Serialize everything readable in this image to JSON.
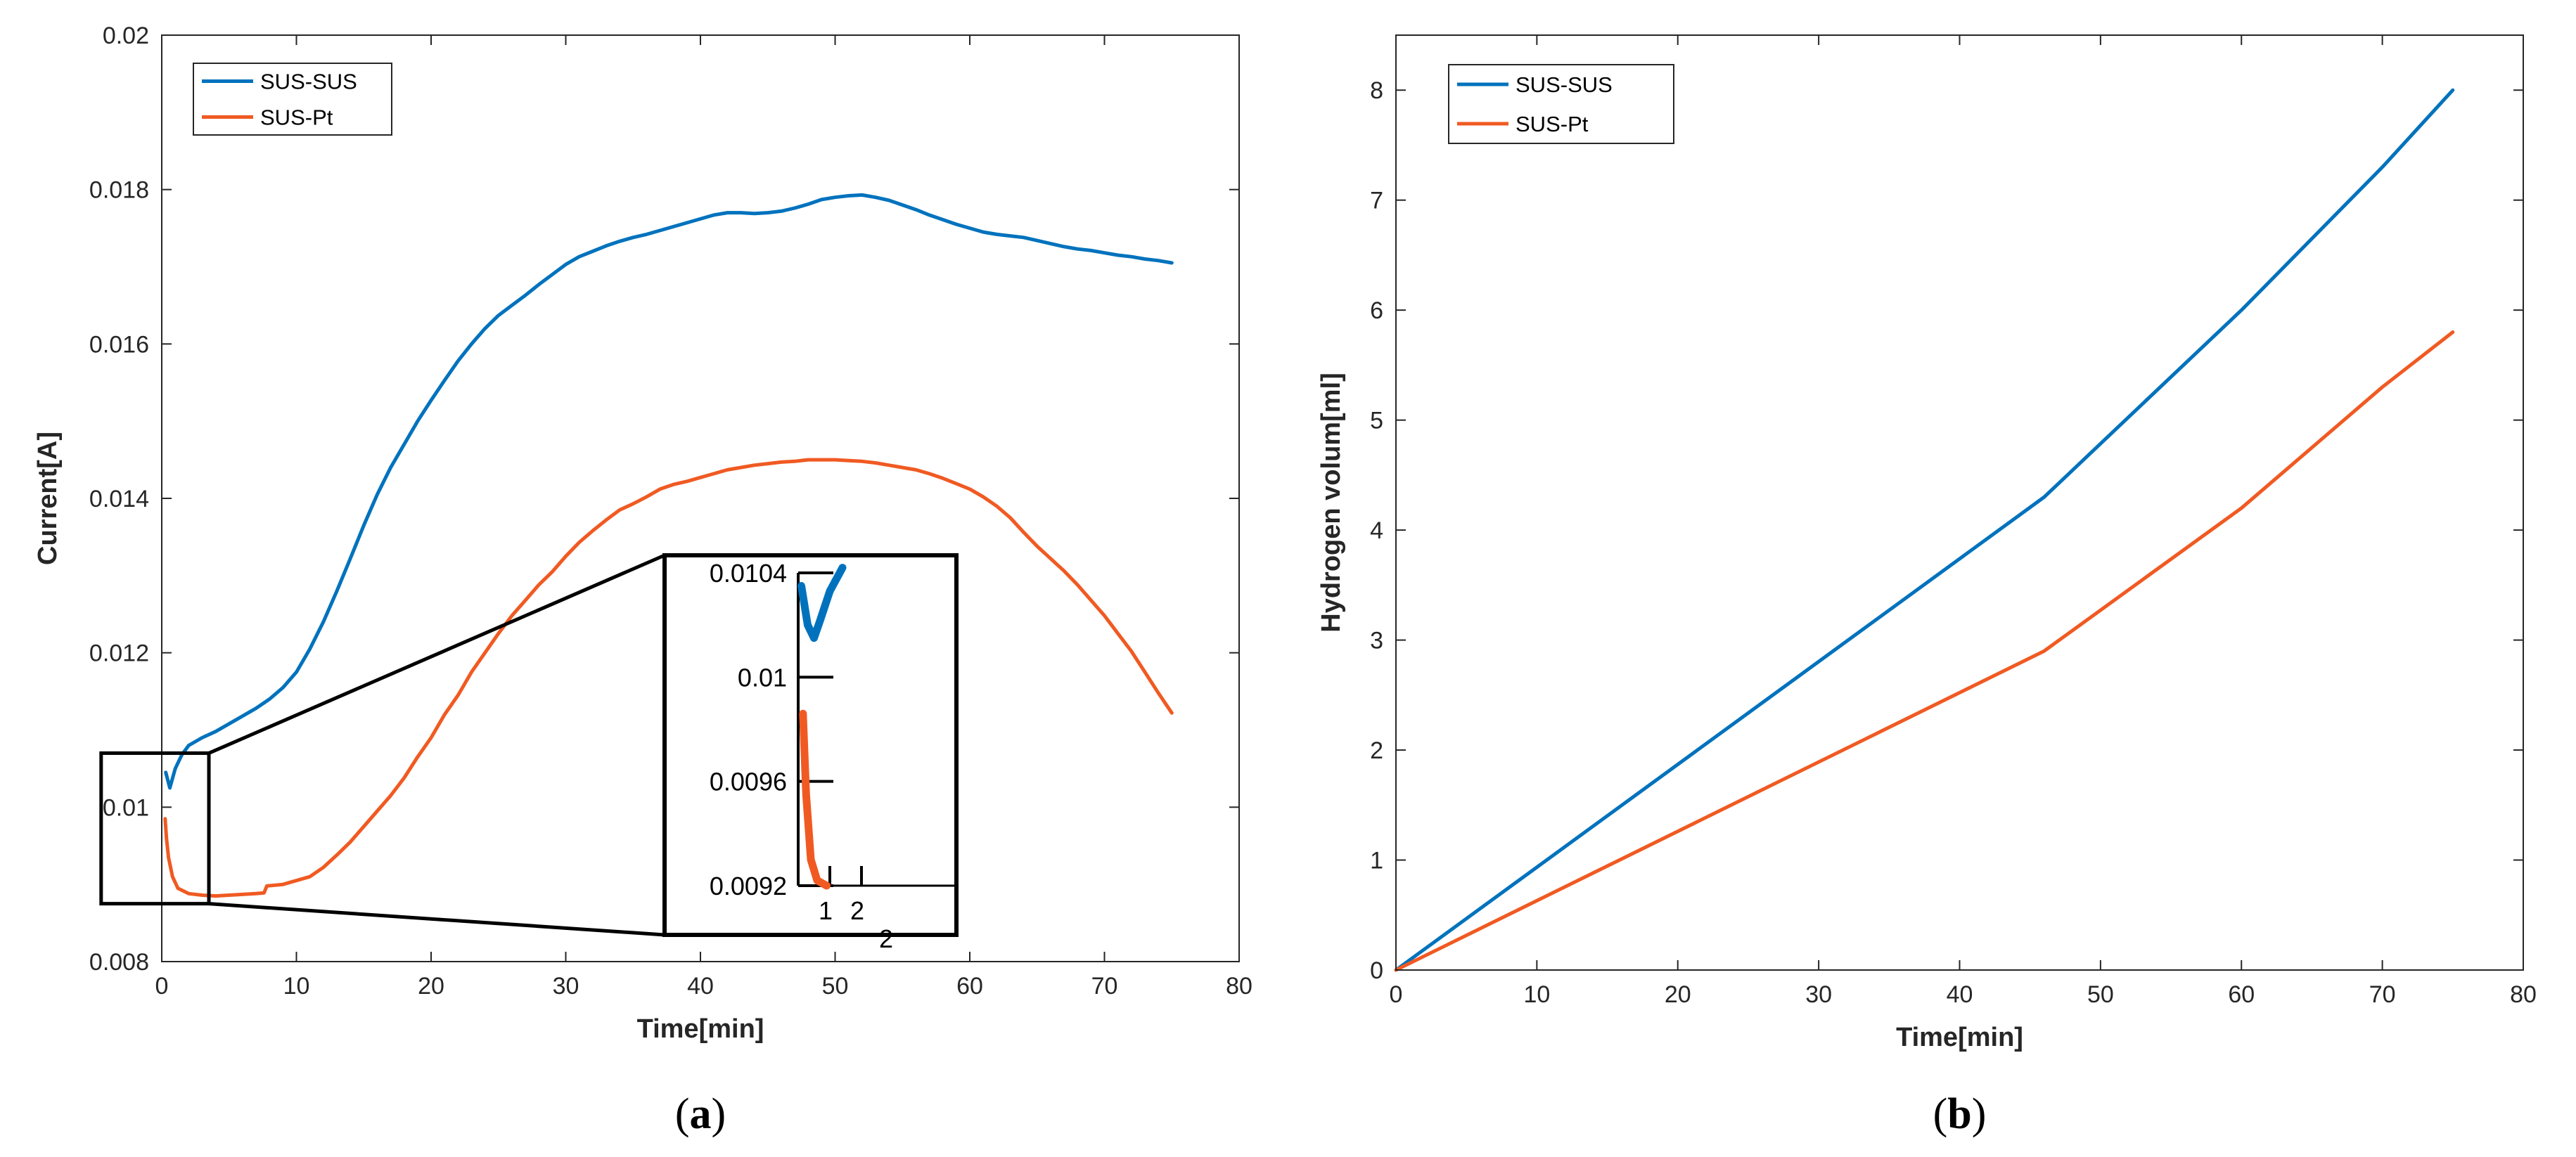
{
  "colors": {
    "series1": "#0072BD",
    "series2": "#F05A22",
    "axis": "#262626",
    "box": "#000000"
  },
  "chart_data": [
    {
      "type": "line",
      "panel_label": "a",
      "xlabel": "Time[min]",
      "ylabel": "Current[A]",
      "xlim": [
        0,
        80
      ],
      "ylim": [
        0.008,
        0.02
      ],
      "xticks": [
        {
          "v": 0,
          "label": "0"
        },
        {
          "v": 10,
          "label": "10"
        },
        {
          "v": 20,
          "label": "20"
        },
        {
          "v": 30,
          "label": "30"
        },
        {
          "v": 40,
          "label": "40"
        },
        {
          "v": 50,
          "label": "50"
        },
        {
          "v": 60,
          "label": "60"
        },
        {
          "v": 70,
          "label": "70"
        },
        {
          "v": 80,
          "label": "80"
        }
      ],
      "yticks": [
        {
          "v": 0.008,
          "label": "0.008"
        },
        {
          "v": 0.01,
          "label": "0.01"
        },
        {
          "v": 0.012,
          "label": "0.012"
        },
        {
          "v": 0.014,
          "label": "0.014"
        },
        {
          "v": 0.016,
          "label": "0.016"
        },
        {
          "v": 0.018,
          "label": "0.018"
        },
        {
          "v": 0.02,
          "label": "0.02"
        }
      ],
      "legend": "top-left",
      "series": [
        {
          "name": "SUS-SUS",
          "color": "#0072BD",
          "points": [
            [
              0.3,
              0.01045
            ],
            [
              0.6,
              0.01025
            ],
            [
              1.0,
              0.0105
            ],
            [
              1.5,
              0.01068
            ],
            [
              2,
              0.0108
            ],
            [
              3,
              0.0109
            ],
            [
              4,
              0.01098
            ],
            [
              5,
              0.01108
            ],
            [
              6,
              0.01118
            ],
            [
              7,
              0.01128
            ],
            [
              8,
              0.0114
            ],
            [
              9,
              0.01155
            ],
            [
              10,
              0.01175
            ],
            [
              11,
              0.01205
            ],
            [
              12,
              0.0124
            ],
            [
              13,
              0.0128
            ],
            [
              14,
              0.01322
            ],
            [
              15,
              0.01365
            ],
            [
              16,
              0.01405
            ],
            [
              17,
              0.0144
            ],
            [
              18,
              0.0147
            ],
            [
              19,
              0.015
            ],
            [
              20,
              0.01527
            ],
            [
              21,
              0.01553
            ],
            [
              22,
              0.01578
            ],
            [
              23,
              0.016
            ],
            [
              24,
              0.0162
            ],
            [
              25,
              0.01637
            ],
            [
              26,
              0.0165
            ],
            [
              27,
              0.01663
            ],
            [
              28,
              0.01677
            ],
            [
              29,
              0.0169
            ],
            [
              30,
              0.01703
            ],
            [
              31,
              0.01713
            ],
            [
              32,
              0.0172
            ],
            [
              33,
              0.01727
            ],
            [
              34,
              0.01733
            ],
            [
              35,
              0.01738
            ],
            [
              36,
              0.01742
            ],
            [
              37,
              0.01747
            ],
            [
              38,
              0.01752
            ],
            [
              39,
              0.01757
            ],
            [
              40,
              0.01762
            ],
            [
              41,
              0.01767
            ],
            [
              42,
              0.0177
            ],
            [
              43,
              0.0177
            ],
            [
              44,
              0.01769
            ],
            [
              45,
              0.0177
            ],
            [
              46,
              0.01772
            ],
            [
              47,
              0.01776
            ],
            [
              48,
              0.01781
            ],
            [
              49,
              0.01787
            ],
            [
              50,
              0.0179
            ],
            [
              51,
              0.01792
            ],
            [
              52,
              0.01793
            ],
            [
              53,
              0.0179
            ],
            [
              54,
              0.01786
            ],
            [
              55,
              0.0178
            ],
            [
              56,
              0.01774
            ],
            [
              57,
              0.01767
            ],
            [
              58,
              0.01761
            ],
            [
              59,
              0.01755
            ],
            [
              60,
              0.0175
            ],
            [
              61,
              0.01745
            ],
            [
              62,
              0.01742
            ],
            [
              63,
              0.0174
            ],
            [
              64,
              0.01738
            ],
            [
              65,
              0.01734
            ],
            [
              66,
              0.0173
            ],
            [
              67,
              0.01726
            ],
            [
              68,
              0.01723
            ],
            [
              69,
              0.01721
            ],
            [
              70,
              0.01718
            ],
            [
              71,
              0.01715
            ],
            [
              72,
              0.01713
            ],
            [
              73,
              0.0171
            ],
            [
              74,
              0.01708
            ],
            [
              75,
              0.01705
            ]
          ]
        },
        {
          "name": "SUS-Pt",
          "color": "#F05A22",
          "points": [
            [
              0.25,
              0.00985
            ],
            [
              0.35,
              0.0096
            ],
            [
              0.5,
              0.00935
            ],
            [
              0.8,
              0.0091
            ],
            [
              1.2,
              0.00895
            ],
            [
              2,
              0.00888
            ],
            [
              3,
              0.00886
            ],
            [
              4,
              0.00885
            ],
            [
              5,
              0.00886
            ],
            [
              6,
              0.00887
            ],
            [
              7,
              0.00888
            ],
            [
              7.6,
              0.00889
            ],
            [
              7.8,
              0.00898
            ],
            [
              9,
              0.009
            ],
            [
              10,
              0.00905
            ],
            [
              11,
              0.0091
            ],
            [
              12,
              0.00922
            ],
            [
              13,
              0.00938
            ],
            [
              14,
              0.00955
            ],
            [
              15,
              0.00975
            ],
            [
              16,
              0.00995
            ],
            [
              17,
              0.01015
            ],
            [
              18,
              0.01038
            ],
            [
              19,
              0.01065
            ],
            [
              20,
              0.0109
            ],
            [
              21,
              0.0112
            ],
            [
              22,
              0.01145
            ],
            [
              23,
              0.01175
            ],
            [
              24,
              0.012
            ],
            [
              25,
              0.01225
            ],
            [
              26,
              0.01248
            ],
            [
              27,
              0.01268
            ],
            [
              28,
              0.01288
            ],
            [
              29,
              0.01305
            ],
            [
              30,
              0.01325
            ],
            [
              31,
              0.01343
            ],
            [
              32,
              0.01358
            ],
            [
              33,
              0.01372
            ],
            [
              34,
              0.01385
            ],
            [
              35,
              0.01393
            ],
            [
              36,
              0.01402
            ],
            [
              37,
              0.01412
            ],
            [
              38,
              0.01418
            ],
            [
              39,
              0.01422
            ],
            [
              40,
              0.01427
            ],
            [
              41,
              0.01432
            ],
            [
              42,
              0.01437
            ],
            [
              43,
              0.0144
            ],
            [
              44,
              0.01443
            ],
            [
              45,
              0.01445
            ],
            [
              46,
              0.01447
            ],
            [
              47,
              0.01448
            ],
            [
              48,
              0.0145
            ],
            [
              49,
              0.0145
            ],
            [
              50,
              0.0145
            ],
            [
              51,
              0.01449
            ],
            [
              52,
              0.01448
            ],
            [
              53,
              0.01446
            ],
            [
              54,
              0.01443
            ],
            [
              55,
              0.0144
            ],
            [
              56,
              0.01437
            ],
            [
              57,
              0.01432
            ],
            [
              58,
              0.01426
            ],
            [
              59,
              0.01419
            ],
            [
              60,
              0.01412
            ],
            [
              61,
              0.01402
            ],
            [
              62,
              0.0139
            ],
            [
              63,
              0.01375
            ],
            [
              64,
              0.01356
            ],
            [
              65,
              0.01338
            ],
            [
              66,
              0.01322
            ],
            [
              67,
              0.01306
            ],
            [
              68,
              0.01288
            ],
            [
              69,
              0.01268
            ],
            [
              70,
              0.01248
            ],
            [
              71,
              0.01225
            ],
            [
              72,
              0.01202
            ],
            [
              73,
              0.01175
            ],
            [
              74,
              0.01148
            ],
            [
              75,
              0.01122
            ]
          ]
        }
      ],
      "zoom_region": {
        "x": [
          -4.5,
          3.5
        ],
        "y": [
          0.00875,
          0.0107
        ]
      },
      "inset": {
        "xlim": [
          0,
          5
        ],
        "ylim": [
          0.0092,
          0.0104
        ],
        "yticks": [
          {
            "v": 0.0092,
            "label": "0.0092"
          },
          {
            "v": 0.0096,
            "label": "0.0096"
          },
          {
            "v": 0.01,
            "label": "0.01"
          },
          {
            "v": 0.0104,
            "label": "0.0104"
          }
        ],
        "xticks": [
          {
            "v": 1,
            "label": "1"
          },
          {
            "v": 2,
            "label": "2"
          }
        ],
        "stray_label": "2",
        "series": [
          {
            "name": "SUS-SUS",
            "color": "#0072BD",
            "points": [
              [
                0.1,
                0.01035
              ],
              [
                0.3,
                0.0102
              ],
              [
                0.5,
                0.01015
              ],
              [
                0.7,
                0.01022
              ],
              [
                1.0,
                0.01033
              ],
              [
                1.4,
                0.01042
              ]
            ]
          },
          {
            "name": "SUS-Pt",
            "color": "#F05A22",
            "points": [
              [
                0.15,
                0.00986
              ],
              [
                0.25,
                0.00955
              ],
              [
                0.4,
                0.0093
              ],
              [
                0.6,
                0.00922
              ],
              [
                0.9,
                0.0092
              ]
            ]
          }
        ]
      }
    },
    {
      "type": "line",
      "panel_label": "b",
      "xlabel": "Time[min]",
      "ylabel": "Hydrogen volum[ml]",
      "xlim": [
        0,
        80
      ],
      "ylim": [
        0,
        8.5
      ],
      "xticks": [
        {
          "v": 0,
          "label": "0"
        },
        {
          "v": 10,
          "label": "10"
        },
        {
          "v": 20,
          "label": "20"
        },
        {
          "v": 30,
          "label": "30"
        },
        {
          "v": 40,
          "label": "40"
        },
        {
          "v": 50,
          "label": "50"
        },
        {
          "v": 60,
          "label": "60"
        },
        {
          "v": 70,
          "label": "70"
        },
        {
          "v": 80,
          "label": "80"
        }
      ],
      "yticks": [
        {
          "v": 0,
          "label": "0"
        },
        {
          "v": 1,
          "label": "1"
        },
        {
          "v": 2,
          "label": "2"
        },
        {
          "v": 3,
          "label": "3"
        },
        {
          "v": 4,
          "label": "4"
        },
        {
          "v": 5,
          "label": "5"
        },
        {
          "v": 6,
          "label": "6"
        },
        {
          "v": 7,
          "label": "7"
        },
        {
          "v": 8,
          "label": "8"
        }
      ],
      "legend": "top-left",
      "series": [
        {
          "name": "SUS-SUS",
          "color": "#0072BD",
          "points": [
            [
              0,
              0
            ],
            [
              46,
              4.3
            ],
            [
              60,
              6.0
            ],
            [
              70,
              7.3
            ],
            [
              75,
              8.0
            ]
          ]
        },
        {
          "name": "SUS-Pt",
          "color": "#F05A22",
          "points": [
            [
              0,
              0
            ],
            [
              46,
              2.9
            ],
            [
              60,
              4.2
            ],
            [
              70,
              5.3
            ],
            [
              75,
              5.8
            ]
          ]
        }
      ]
    }
  ]
}
